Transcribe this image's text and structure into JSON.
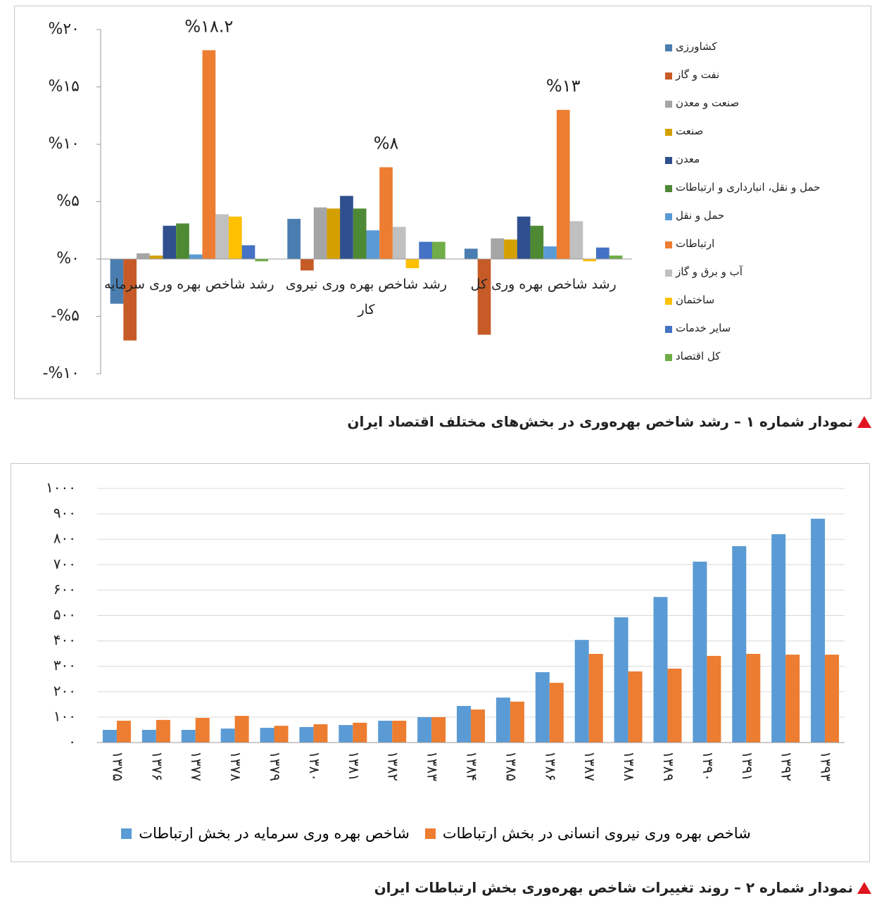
{
  "chart_data": [
    {
      "type": "bar",
      "categories": [
        "رشد شاخص بهره وری سرمایه",
        "رشد شاخص بهره وری نیروی کار",
        "رشد شاخص بهره وری کل"
      ],
      "series": [
        {
          "name": "کشاورزی",
          "color": "#4a7eb0",
          "values": [
            -3.9,
            3.5,
            0.9
          ]
        },
        {
          "name": "نفت و گاز",
          "color": "#c65b27",
          "values": [
            -7.1,
            -1.0,
            -6.6
          ]
        },
        {
          "name": "صنعت و معدن",
          "color": "#a5a5a5",
          "values": [
            0.5,
            4.5,
            1.8
          ]
        },
        {
          "name": "صنعت",
          "color": "#d4a000",
          "values": [
            0.3,
            4.4,
            1.7
          ]
        },
        {
          "name": "معدن",
          "color": "#2f4f8f",
          "values": [
            2.9,
            5.5,
            3.7
          ]
        },
        {
          "name": "حمل و نقل، انبارداری و ارتباطات",
          "color": "#4e8a34",
          "values": [
            3.1,
            4.4,
            2.9
          ]
        },
        {
          "name": "حمل و نقل",
          "color": "#5a9bd5",
          "values": [
            0.4,
            2.5,
            1.1
          ]
        },
        {
          "name": "ارتباطات",
          "color": "#ed7d31",
          "values": [
            18.2,
            8,
            13
          ],
          "value_labels": [
            "%۱۸.۲",
            "%۸",
            "%۱۳"
          ]
        },
        {
          "name": "آب و برق و گاز",
          "color": "#c0c0c0",
          "values": [
            3.9,
            2.8,
            3.3
          ]
        },
        {
          "name": "ساختمان",
          "color": "#ffc000",
          "values": [
            3.7,
            -0.8,
            -0.2
          ]
        },
        {
          "name": "سایر خدمات",
          "color": "#4472c4",
          "values": [
            1.2,
            1.5,
            1.0
          ]
        },
        {
          "name": "کل اقتصاد",
          "color": "#70ad47",
          "values": [
            -0.2,
            1.5,
            0.3
          ]
        }
      ],
      "ylim": [
        -10,
        20
      ],
      "yticks": [
        {
          "value": -10,
          "label": "-%۱۰"
        },
        {
          "value": -5,
          "label": "-%۵"
        },
        {
          "value": 0,
          "label": "%۰"
        },
        {
          "value": 5,
          "label": "%۵"
        },
        {
          "value": 10,
          "label": "%۱۰"
        },
        {
          "value": 15,
          "label": "%۱۵"
        },
        {
          "value": 20,
          "label": "%۲۰"
        }
      ],
      "grid": false,
      "legend": "right"
    },
    {
      "type": "bar",
      "categories": [
        "۱۳۷۵",
        "۱۳۷۶",
        "۱۳۷۷",
        "۱۳۷۸",
        "۱۳۷۹",
        "۱۳۸۰",
        "۱۳۸۱",
        "۱۳۸۲",
        "۱۳۸۳",
        "۱۳۸۴",
        "۱۳۸۵",
        "۱۳۸۶",
        "۱۳۸۷",
        "۱۳۸۸",
        "۱۳۸۹",
        "۱۳۹۰",
        "۱۳۹۱",
        "۱۳۹۲",
        "۱۳۹۳"
      ],
      "series": [
        {
          "name": "شاخص بهره وری سرمایه در بخش ارتباطات",
          "color": "#5b9bd5",
          "values": [
            50,
            50,
            50,
            55,
            58,
            61,
            69,
            86,
            100,
            144,
            177,
            277,
            404,
            493,
            573,
            712,
            773,
            820,
            881
          ]
        },
        {
          "name": "شاخص بهره وری نیروی انسانی در بخش ارتباطات",
          "color": "#ed7d31",
          "values": [
            86,
            89,
            97,
            105,
            66,
            72,
            78,
            86,
            100,
            130,
            161,
            235,
            349,
            280,
            291,
            341,
            349,
            346,
            346
          ]
        }
      ],
      "ylim": [
        0,
        1000
      ],
      "yticks": [
        {
          "value": 0,
          "label": "۰"
        },
        {
          "value": 100,
          "label": "۱۰۰"
        },
        {
          "value": 200,
          "label": "۲۰۰"
        },
        {
          "value": 300,
          "label": "۳۰۰"
        },
        {
          "value": 400,
          "label": "۴۰۰"
        },
        {
          "value": 500,
          "label": "۵۰۰"
        },
        {
          "value": 600,
          "label": "۶۰۰"
        },
        {
          "value": 700,
          "label": "۷۰۰"
        },
        {
          "value": 800,
          "label": "۸۰۰"
        },
        {
          "value": 900,
          "label": "۹۰۰"
        },
        {
          "value": 1000,
          "label": "۱۰۰۰"
        }
      ],
      "grid": true,
      "legend": "bottom"
    }
  ],
  "captions": [
    "نمودار شماره ۱ – رشد شاخص بهره‌وری در بخش‌های مختلف اقتصاد ایران",
    "نمودار شماره ۲ – روند تغییرات شاخص بهره‌وری بخش ارتباطات ایران"
  ]
}
